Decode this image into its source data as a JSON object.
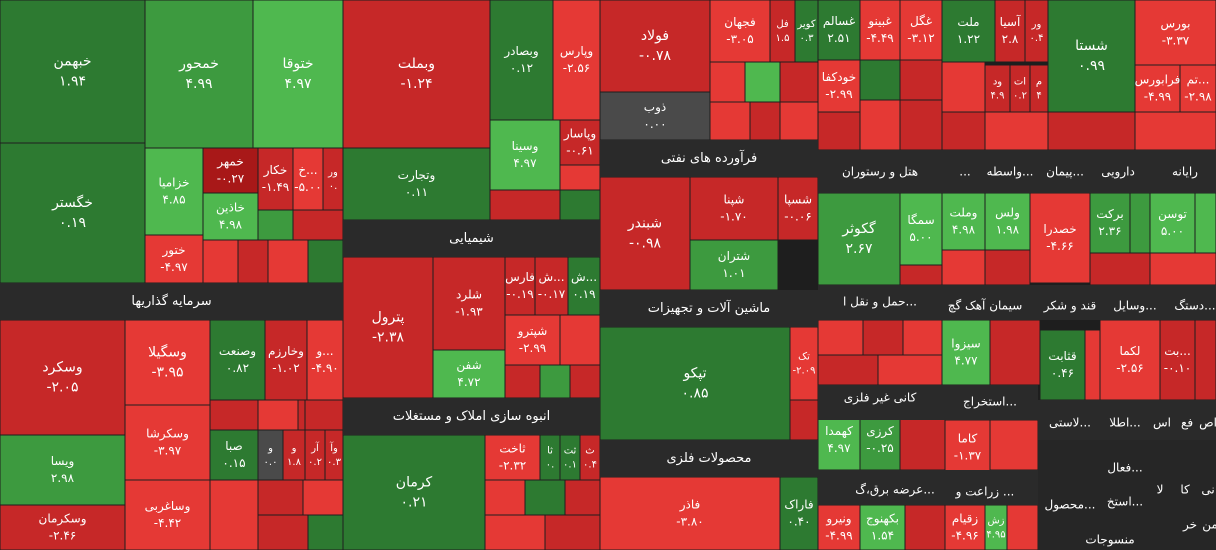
{
  "sectors": [
    {
      "title": "سرمایه گذاریها"
    },
    {
      "title": "شیمیایی"
    },
    {
      "title": "انبوه سازی املاک و مستغلات"
    },
    {
      "title": "فرآورده های نفتی"
    },
    {
      "title": "ماشین آلات و تجهیزات"
    },
    {
      "title": "محصولات فلزی"
    }
  ],
  "small_headers": [
    "هتل و رستوران",
    "...",
    "واسطه...",
    "پیمان...",
    "دارویی",
    "رایانه",
    "حمل و نقل ا...",
    "سیمان آهک گچ",
    "قند و شکر",
    "وسایل...",
    "دستگ...",
    "کانی غیر فلزی",
    "استخراج...",
    "لاستی...",
    "اطلا...",
    "اس",
    "فع",
    "اص",
    "عرضه برق،گ...",
    "زراعت و ...",
    "فعال...",
    "کا",
    "نی",
    "لا",
    "استخ...",
    "محصول...",
    "منسوجات",
    "خر",
    "من"
  ],
  "tiles": [
    {
      "name": "خبهمن",
      "change": "۱.۹۴"
    },
    {
      "name": "خگستر",
      "change": "۰.۱۹"
    },
    {
      "name": "خمحور",
      "change": "۴.۹۹"
    },
    {
      "name": "ختوقا",
      "change": "۴.۹۷"
    },
    {
      "name": "خزامیا",
      "change": "۴.۸۵"
    },
    {
      "name": "ختور",
      "change": "-۴.۹۷"
    },
    {
      "name": "خمهر",
      "change": "-۰.۲۷"
    },
    {
      "name": "خاذین",
      "change": "۴.۹۸"
    },
    {
      "name": "خکار",
      "change": "-۱.۴۹"
    },
    {
      "name": "خ...",
      "change": "-۵.۰۰"
    },
    {
      "name": "ور",
      "change": "۰."
    },
    {
      "name": "وسکرد",
      "change": "-۲.۰۵"
    },
    {
      "name": "ویسا",
      "change": "۲.۹۸"
    },
    {
      "name": "وسکرمان",
      "change": "-۲.۴۶"
    },
    {
      "name": "وسگیلا",
      "change": "-۳.۹۵"
    },
    {
      "name": "وسکرشا",
      "change": "-۳.۹۷"
    },
    {
      "name": "وساغربی",
      "change": "-۴.۴۲"
    },
    {
      "name": "وصنعت",
      "change": "۰.۸۲"
    },
    {
      "name": "وخارزم",
      "change": "-۱.۰۲"
    },
    {
      "name": "و...",
      "change": "-۴.۹۰"
    },
    {
      "name": "صبا",
      "change": "۰.۱۵"
    },
    {
      "name": "و",
      "change": "۰.۰"
    },
    {
      "name": "و",
      "change": "۱.۸"
    },
    {
      "name": "آر",
      "change": "۰.۲"
    },
    {
      "name": "وآ",
      "change": "۰.۳"
    },
    {
      "name": "وبملت",
      "change": "-۱.۲۴"
    },
    {
      "name": "وتجارت",
      "change": "۰.۱۱"
    },
    {
      "name": "وبصادر",
      "change": "۰.۱۲"
    },
    {
      "name": "وپارس",
      "change": "-۲.۵۶"
    },
    {
      "name": "وسینا",
      "change": "۴.۹۷"
    },
    {
      "name": "وپاسار",
      "change": "-۰.۶۱"
    },
    {
      "name": "پترول",
      "change": "-۲.۳۸"
    },
    {
      "name": "شلرد",
      "change": "-۱.۹۳"
    },
    {
      "name": "شفن",
      "change": "۴.۷۲"
    },
    {
      "name": "فارس",
      "change": "-۰.۱۹"
    },
    {
      "name": "ش...",
      "change": "-۰.۱۷"
    },
    {
      "name": "ش...",
      "change": "۰.۱۹"
    },
    {
      "name": "شپترو",
      "change": "-۲.۹۹"
    },
    {
      "name": "کرمان",
      "change": "۰.۲۱"
    },
    {
      "name": "ثاخت",
      "change": "-۲.۳۲"
    },
    {
      "name": "ثا",
      "change": "۰."
    },
    {
      "name": "ثت",
      "change": "۰.۱"
    },
    {
      "name": "ث",
      "change": "۰.۴"
    },
    {
      "name": "فولاد",
      "change": "-۰.۷۸"
    },
    {
      "name": "ذوب",
      "change": "۰.۰۰"
    },
    {
      "name": "فجهان",
      "change": "-۳.۰۵"
    },
    {
      "name": "فل",
      "change": "۱.۵"
    },
    {
      "name": "کویر",
      "change": "۰.۳"
    },
    {
      "name": "شبندر",
      "change": "-۰.۹۸"
    },
    {
      "name": "شپنا",
      "change": "-۱.۷۰"
    },
    {
      "name": "شسپا",
      "change": "-۰.۰۶"
    },
    {
      "name": "شتران",
      "change": "۱.۰۱"
    },
    {
      "name": "تپکو",
      "change": "۰.۸۵"
    },
    {
      "name": "تک",
      "change": "-۲.۰۹"
    },
    {
      "name": "فاذر",
      "change": "-۳.۸۰"
    },
    {
      "name": "فاراک",
      "change": "۰.۴۰"
    },
    {
      "name": "غسالم",
      "change": "۲.۵۱"
    },
    {
      "name": "غبینو",
      "change": "-۴.۴۹"
    },
    {
      "name": "غگل",
      "change": "-۳.۱۲"
    },
    {
      "name": "ملت",
      "change": "۱.۲۲"
    },
    {
      "name": "آسیا",
      "change": "۲.۸"
    },
    {
      "name": "ور",
      "change": "۰.۴"
    },
    {
      "name": "شستا",
      "change": "۰.۹۹"
    },
    {
      "name": "بورس",
      "change": "-۳.۳۷"
    },
    {
      "name": "فرابورس",
      "change": "-۴.۹۹"
    },
    {
      "name": "تم...",
      "change": "-۲.۹۸"
    },
    {
      "name": "خودکفا",
      "change": "-۲.۹۹"
    },
    {
      "name": "ود",
      "change": "۴.۹"
    },
    {
      "name": "ات",
      "change": "۰.۲"
    },
    {
      "name": "م",
      "change": "۴"
    },
    {
      "name": "گکوثر",
      "change": "۲.۶۷"
    },
    {
      "name": "سمگا",
      "change": "۵.۰۰"
    },
    {
      "name": "وملت",
      "change": "۴.۹۸"
    },
    {
      "name": "ولس",
      "change": "۱.۹۸"
    },
    {
      "name": "خصدرا",
      "change": "-۴.۶۶"
    },
    {
      "name": "برکت",
      "change": "۲.۳۶"
    },
    {
      "name": "توسن",
      "change": "۵.۰۰"
    },
    {
      "name": "سیزوا",
      "change": "۴.۷۷"
    },
    {
      "name": "قثابت",
      "change": "۰.۴۶"
    },
    {
      "name": "لکما",
      "change": "-۲.۵۶"
    },
    {
      "name": "بت...",
      "change": "-۰.۱۰"
    },
    {
      "name": "کهمدا",
      "change": "۴.۹۷"
    },
    {
      "name": "کرزی",
      "change": "-۰.۲۵"
    },
    {
      "name": "کاما",
      "change": "-۱.۳۷"
    },
    {
      "name": "ونیرو",
      "change": "-۴.۹۹"
    },
    {
      "name": "بکهنوج",
      "change": "۱.۵۴"
    },
    {
      "name": "زقیام",
      "change": "-۴.۹۶"
    },
    {
      "name": "زش",
      "change": "۴.۹۵"
    }
  ]
}
